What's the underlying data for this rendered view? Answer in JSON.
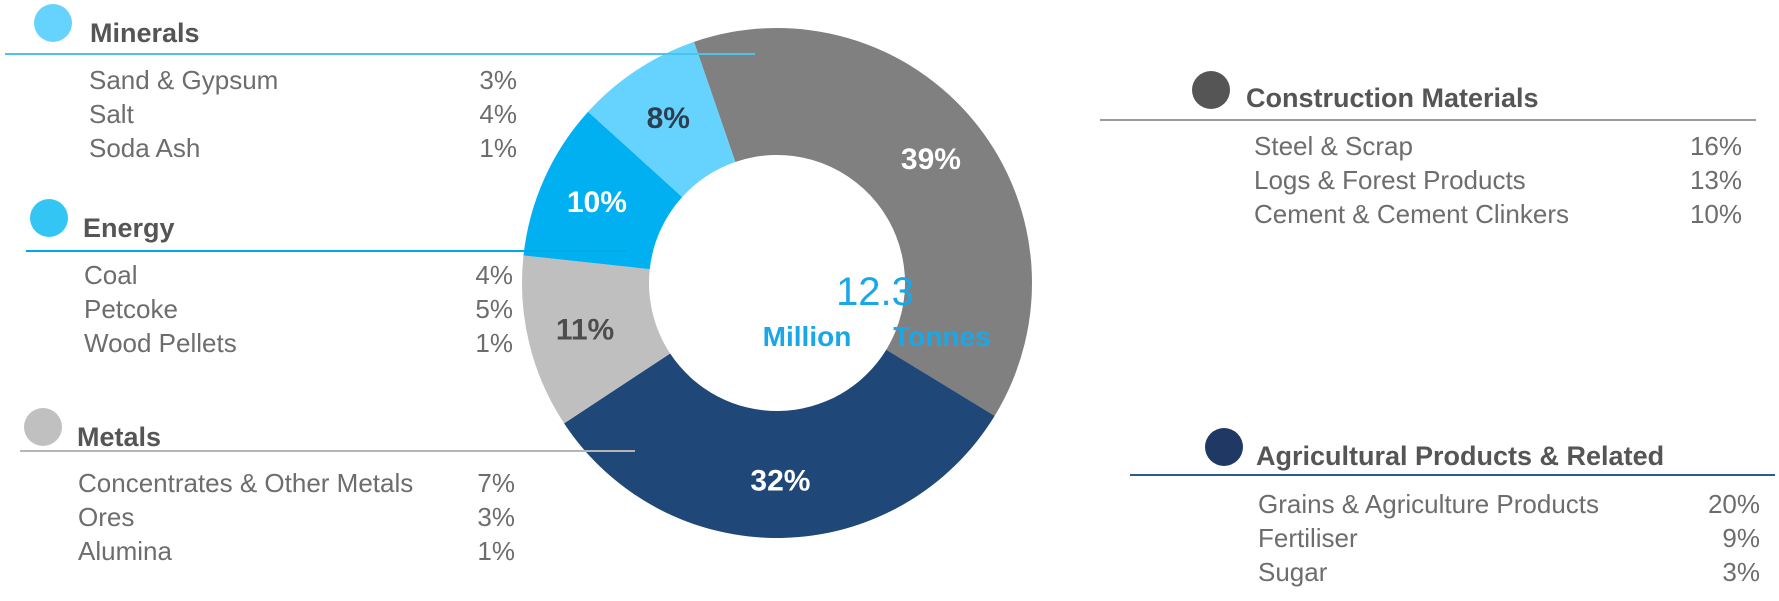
{
  "chart_data": {
    "type": "pie",
    "center": {
      "value": "12.3",
      "unit_left": "Million",
      "unit_right": "Tonnes"
    },
    "segments": [
      {
        "name": "Construction Materials",
        "value": 39,
        "label": "39%",
        "color": "#808080",
        "label_color": "#ffffff"
      },
      {
        "name": "Agricultural Products & Related",
        "value": 32,
        "label": "32%",
        "color": "#1f4777",
        "label_color": "#ffffff"
      },
      {
        "name": "Metals",
        "value": 11,
        "label": "11%",
        "color": "#bfbfbf",
        "label_color": "#4d4d4d"
      },
      {
        "name": "Energy",
        "value": 10,
        "label": "10%",
        "color": "#00b0f0",
        "label_color": "#ffffff"
      },
      {
        "name": "Minerals",
        "value": 8,
        "label": "8%",
        "color": "#66d3ff",
        "label_color": "#2d3e50"
      }
    ]
  },
  "legend": {
    "minerals": {
      "title": "Minerals",
      "dot_color": "#66d3ff",
      "rule_color": "#4ec3ea",
      "items": [
        {
          "label": "Sand & Gypsum",
          "value": "3%"
        },
        {
          "label": "Salt",
          "value": "4%"
        },
        {
          "label": "Soda Ash",
          "value": "1%"
        }
      ]
    },
    "energy": {
      "title": "Energy",
      "dot_color": "#33c6f5",
      "rule_color": "#00a9e6",
      "items": [
        {
          "label": "Coal",
          "value": "4%"
        },
        {
          "label": "Petcoke",
          "value": "5%"
        },
        {
          "label": "Wood Pellets",
          "value": "1%"
        }
      ]
    },
    "metals": {
      "title": "Metals",
      "dot_color": "#c0c0c0",
      "rule_color": "#b5b5b5",
      "items": [
        {
          "label": "Concentrates & Other Metals",
          "value": "7%"
        },
        {
          "label": "Ores",
          "value": "3%"
        },
        {
          "label": "Alumina",
          "value": "1%"
        }
      ]
    },
    "construction": {
      "title": "Construction Materials",
      "dot_color": "#555555",
      "rule_color": "#9a9a9a",
      "items": [
        {
          "label": "Steel & Scrap",
          "value": "16%"
        },
        {
          "label": "Logs & Forest Products",
          "value": "13%"
        },
        {
          "label": "Cement & Cement Clinkers",
          "value": "10%"
        }
      ]
    },
    "agricultural": {
      "title": "Agricultural Products & Related",
      "dot_color": "#1f3864",
      "rule_color": "#2e5a8c",
      "items": [
        {
          "label": "Grains & Agriculture Products",
          "value": "20%"
        },
        {
          "label": "Fertiliser",
          "value": "9%"
        },
        {
          "label": "Sugar",
          "value": "3%"
        }
      ]
    }
  }
}
